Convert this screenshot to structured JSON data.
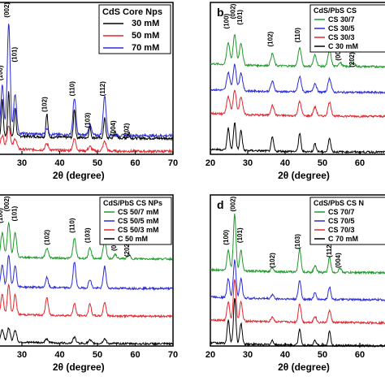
{
  "chart_data": [
    {
      "panel": "",
      "type": "line",
      "xlabel": "2θ (degree)",
      "ylabel": "",
      "xlim": [
        20,
        70
      ],
      "x_ticks": [
        "30",
        "40",
        "50",
        "60",
        "70"
      ],
      "legend_title": "CdS Core Nps",
      "legend_position": "top-right",
      "series": [
        {
          "name": "30 mM",
          "color": "#000000",
          "peaks": [
            [
              24.8,
              0.7
            ],
            [
              26.5,
              0.85
            ],
            [
              28.2,
              0.55
            ],
            [
              36.6,
              0.45
            ],
            [
              43.9,
              0.55
            ],
            [
              48.0,
              0.22
            ],
            [
              51.9,
              0.4
            ],
            [
              54.7,
              0.14
            ],
            [
              58.3,
              0.12
            ]
          ],
          "offset": 0.3,
          "width": 0.35
        },
        {
          "name": "50 mM",
          "color": "#e0262d",
          "peaks": [
            [
              24.8,
              0.25
            ],
            [
              26.5,
              0.45
            ],
            [
              28.2,
              0.2
            ],
            [
              36.6,
              0.12
            ],
            [
              43.9,
              0.22
            ],
            [
              48.0,
              0.08
            ],
            [
              51.9,
              0.18
            ]
          ],
          "offset": 0.05,
          "width": 0.6
        },
        {
          "name": "70 mM",
          "color": "#2b2bd6",
          "peaks": [
            [
              24.8,
              0.9
            ],
            [
              26.5,
              2.1
            ],
            [
              28.2,
              0.75
            ],
            [
              36.6,
              0.12
            ],
            [
              43.9,
              0.7
            ],
            [
              48.0,
              0.2
            ],
            [
              51.9,
              0.75
            ]
          ],
          "offset": 0.35,
          "width": 0.55
        }
      ],
      "annotations": [
        {
          "text": "(100)",
          "x": 24.8,
          "y": 1.55
        },
        {
          "text": "(002)",
          "x": 26.6,
          "y": 2.75
        },
        {
          "text": "(101)",
          "x": 28.6,
          "y": 1.9
        },
        {
          "text": "(102)",
          "x": 36.6,
          "y": 0.95
        },
        {
          "text": "(110)",
          "x": 43.9,
          "y": 1.25
        },
        {
          "text": "(103)",
          "x": 48.0,
          "y": 0.65
        },
        {
          "text": "(112)",
          "x": 51.9,
          "y": 1.25
        },
        {
          "text": "(004)",
          "x": 54.7,
          "y": 0.5
        },
        {
          "text": "(202)",
          "x": 58.3,
          "y": 0.45
        }
      ],
      "ymax": 2.8
    },
    {
      "panel": "b",
      "type": "line",
      "xlabel": "2θ (degree)",
      "ylabel": "",
      "xlim": [
        20,
        70
      ],
      "x_ticks": [
        "20",
        "30",
        "40",
        "50",
        "60",
        "70"
      ],
      "legend_title": "CdS/PbS CS",
      "legend_position": "top-right",
      "series": [
        {
          "name": "CS 30/7",
          "color": "#1f9a2a",
          "peaks": [
            [
              24.8,
              0.55
            ],
            [
              26.5,
              0.75
            ],
            [
              28.2,
              0.55
            ],
            [
              36.6,
              0.3
            ],
            [
              43.9,
              0.45
            ],
            [
              48.0,
              0.28
            ],
            [
              51.9,
              0.4
            ],
            [
              54.7,
              0.1
            ],
            [
              58.3,
              0.1
            ]
          ],
          "offset": 2.2,
          "width": 0.6
        },
        {
          "name": "CS 30/5",
          "color": "#2b2bd6",
          "peaks": [
            [
              24.8,
              0.45
            ],
            [
              26.5,
              0.65
            ],
            [
              28.2,
              0.45
            ],
            [
              36.6,
              0.25
            ],
            [
              43.9,
              0.38
            ],
            [
              48.0,
              0.22
            ],
            [
              51.9,
              0.35
            ]
          ],
          "offset": 1.55,
          "width": 0.6
        },
        {
          "name": "CS 30/3",
          "color": "#e0262d",
          "peaks": [
            [
              24.8,
              0.45
            ],
            [
              26.5,
              0.6
            ],
            [
              28.2,
              0.45
            ],
            [
              36.6,
              0.25
            ],
            [
              43.9,
              0.35
            ],
            [
              48.0,
              0.22
            ],
            [
              51.9,
              0.35
            ]
          ],
          "offset": 0.95,
          "width": 0.6
        },
        {
          "name": "C 30 mM",
          "color": "#000000",
          "peaks": [
            [
              24.8,
              0.55
            ],
            [
              26.5,
              0.7
            ],
            [
              28.2,
              0.5
            ],
            [
              36.6,
              0.35
            ],
            [
              43.9,
              0.45
            ],
            [
              48.0,
              0.2
            ],
            [
              51.9,
              0.35
            ]
          ],
          "offset": 0.05,
          "width": 0.45
        }
      ],
      "annotations": [
        {
          "text": "(100)",
          "x": 24.9,
          "y": 3.35
        },
        {
          "text": "(002)",
          "x": 26.6,
          "y": 3.6
        },
        {
          "text": "(101)",
          "x": 28.5,
          "y": 3.45
        },
        {
          "text": "(102)",
          "x": 36.6,
          "y": 2.9
        },
        {
          "text": "(110)",
          "x": 43.9,
          "y": 3.0
        },
        {
          "text": "(103)",
          "x": 48.0,
          "y": 2.75
        },
        {
          "text": "(112)",
          "x": 51.9,
          "y": 2.95
        },
        {
          "text": "(004)",
          "x": 54.8,
          "y": 2.55
        },
        {
          "text": "(202)",
          "x": 58.5,
          "y": 2.38
        }
      ],
      "ymax": 3.7
    },
    {
      "panel": "",
      "type": "line",
      "xlabel": "2θ (degree)",
      "ylabel": "",
      "xlim": [
        20,
        70
      ],
      "x_ticks": [
        "30",
        "40",
        "50",
        "60",
        "70"
      ],
      "legend_title": "CdS/PbS CS NPs",
      "legend_position": "top-right",
      "series": [
        {
          "name": "CS 50/7 mM",
          "color": "#1f9a2a",
          "peaks": [
            [
              24.8,
              0.6
            ],
            [
              26.5,
              0.85
            ],
            [
              28.2,
              0.6
            ],
            [
              36.6,
              0.25
            ],
            [
              43.9,
              0.5
            ],
            [
              48.0,
              0.25
            ],
            [
              51.9,
              0.45
            ],
            [
              54.7,
              0.1
            ],
            [
              58.3,
              0.1
            ]
          ],
          "offset": 2.2,
          "width": 0.55
        },
        {
          "name": "CS 50/5 mM",
          "color": "#2b2bd6",
          "peaks": [
            [
              24.8,
              0.55
            ],
            [
              26.5,
              0.8
            ],
            [
              28.2,
              0.55
            ],
            [
              36.6,
              0.25
            ],
            [
              43.9,
              0.65
            ],
            [
              48.0,
              0.22
            ],
            [
              51.9,
              0.55
            ]
          ],
          "offset": 1.45,
          "width": 0.5
        },
        {
          "name": "CS 50/3 mM",
          "color": "#e0262d",
          "peaks": [
            [
              24.8,
              0.5
            ],
            [
              26.5,
              0.75
            ],
            [
              28.2,
              0.5
            ],
            [
              36.6,
              0.45
            ],
            [
              43.9,
              0.3
            ],
            [
              48.0,
              0.3
            ],
            [
              51.9,
              0.35
            ]
          ],
          "offset": 0.75,
          "width": 0.5
        },
        {
          "name": "C 50 mM",
          "color": "#000000",
          "peaks": [
            [
              24.8,
              0.3
            ],
            [
              26.5,
              0.35
            ],
            [
              28.2,
              0.3
            ],
            [
              36.6,
              0.1
            ],
            [
              43.9,
              0.15
            ],
            [
              48.0,
              0.08
            ],
            [
              51.9,
              0.12
            ]
          ],
          "offset": 0.05,
          "width": 0.55
        }
      ],
      "annotations": [
        {
          "text": "(100)",
          "x": 24.8,
          "y": 3.3
        },
        {
          "text": "(002)",
          "x": 26.6,
          "y": 3.6
        },
        {
          "text": "(101)",
          "x": 28.6,
          "y": 3.35
        },
        {
          "text": "(102)",
          "x": 37.2,
          "y": 2.75
        },
        {
          "text": "(110)",
          "x": 43.9,
          "y": 3.05
        },
        {
          "text": "(103)",
          "x": 48.0,
          "y": 2.8
        },
        {
          "text": "(112)",
          "x": 51.9,
          "y": 3.05
        },
        {
          "text": "(004)",
          "x": 55.0,
          "y": 2.6
        },
        {
          "text": "(202)",
          "x": 58.4,
          "y": 2.45
        }
      ],
      "ymax": 3.7
    },
    {
      "panel": "d",
      "type": "line",
      "xlabel": "2θ (degree)",
      "ylabel": "",
      "xlim": [
        20,
        70
      ],
      "x_ticks": [
        "20",
        "30",
        "40",
        "50",
        "60",
        "70"
      ],
      "legend_title": "CdS/PbS CS N",
      "legend_position": "top-right",
      "series": [
        {
          "name": "CS 70/7",
          "color": "#1f9a2a",
          "peaks": [
            [
              24.8,
              0.5
            ],
            [
              26.5,
              1.35
            ],
            [
              28.2,
              0.5
            ],
            [
              36.6,
              0.1
            ],
            [
              43.9,
              0.55
            ],
            [
              48.0,
              0.15
            ],
            [
              51.9,
              0.35
            ],
            [
              54.7,
              0.1
            ]
          ],
          "offset": 1.75,
          "width": 0.5
        },
        {
          "name": "CS 70/5",
          "color": "#2b2bd6",
          "peaks": [
            [
              24.8,
              0.45
            ],
            [
              26.5,
              0.9
            ],
            [
              28.2,
              0.45
            ],
            [
              36.6,
              0.1
            ],
            [
              43.9,
              0.45
            ],
            [
              48.0,
              0.15
            ],
            [
              51.9,
              0.3
            ]
          ],
          "offset": 1.1,
          "width": 0.5
        },
        {
          "name": "CS 70/3",
          "color": "#e0262d",
          "peaks": [
            [
              24.8,
              0.45
            ],
            [
              26.5,
              1.0
            ],
            [
              28.2,
              0.45
            ],
            [
              36.6,
              0.12
            ],
            [
              43.9,
              0.45
            ],
            [
              48.0,
              0.15
            ],
            [
              51.9,
              0.3
            ]
          ],
          "offset": 0.55,
          "width": 0.5
        },
        {
          "name": "C 70 mM",
          "color": "#000000",
          "peaks": [
            [
              24.8,
              0.55
            ],
            [
              26.5,
              1.1
            ],
            [
              28.2,
              0.5
            ],
            [
              36.6,
              0.1
            ],
            [
              43.9,
              0.4
            ],
            [
              48.0,
              0.12
            ],
            [
              51.9,
              0.35
            ]
          ],
          "offset": 0.0,
          "width": 0.45
        }
      ],
      "annotations": [
        {
          "text": "(100)",
          "x": 24.8,
          "y": 2.6
        },
        {
          "text": "(002)",
          "x": 26.6,
          "y": 3.4
        },
        {
          "text": "(101)",
          "x": 28.5,
          "y": 2.65
        },
        {
          "text": "(102)",
          "x": 37.2,
          "y": 2.05
        },
        {
          "text": "(103)",
          "x": 43.9,
          "y": 2.5
        },
        {
          "text": "(112)",
          "x": 52.4,
          "y": 2.3
        },
        {
          "text": "(004)",
          "x": 54.8,
          "y": 2.05
        }
      ],
      "ymax": 3.5
    }
  ]
}
